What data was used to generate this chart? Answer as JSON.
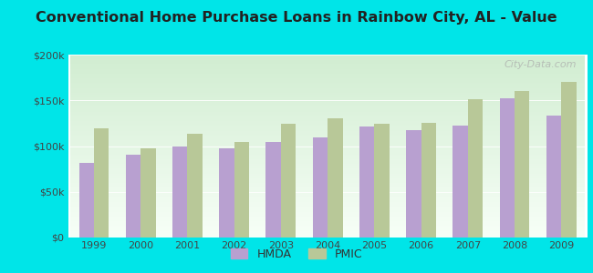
{
  "title": "Conventional Home Purchase Loans in Rainbow City, AL - Value",
  "years": [
    1999,
    2000,
    2001,
    2002,
    2003,
    2004,
    2005,
    2006,
    2007,
    2008,
    2009
  ],
  "hmda": [
    82000,
    91000,
    100000,
    98000,
    104000,
    109000,
    121000,
    117000,
    122000,
    152000,
    133000
  ],
  "pmic": [
    119000,
    98000,
    113000,
    104000,
    124000,
    130000,
    124000,
    125000,
    151000,
    160000,
    170000
  ],
  "hmda_color": "#b8a0d0",
  "pmic_color": "#b8c898",
  "outer_background": "#00e5e8",
  "ylim": [
    0,
    200000
  ],
  "yticks": [
    0,
    50000,
    100000,
    150000,
    200000
  ],
  "ytick_labels": [
    "$0",
    "$50k",
    "$100k",
    "$150k",
    "$200k"
  ],
  "watermark": "City-Data.com",
  "legend_hmda": "HMDA",
  "legend_pmic": "PMIC",
  "title_fontsize": 11.5,
  "bar_width": 0.32
}
